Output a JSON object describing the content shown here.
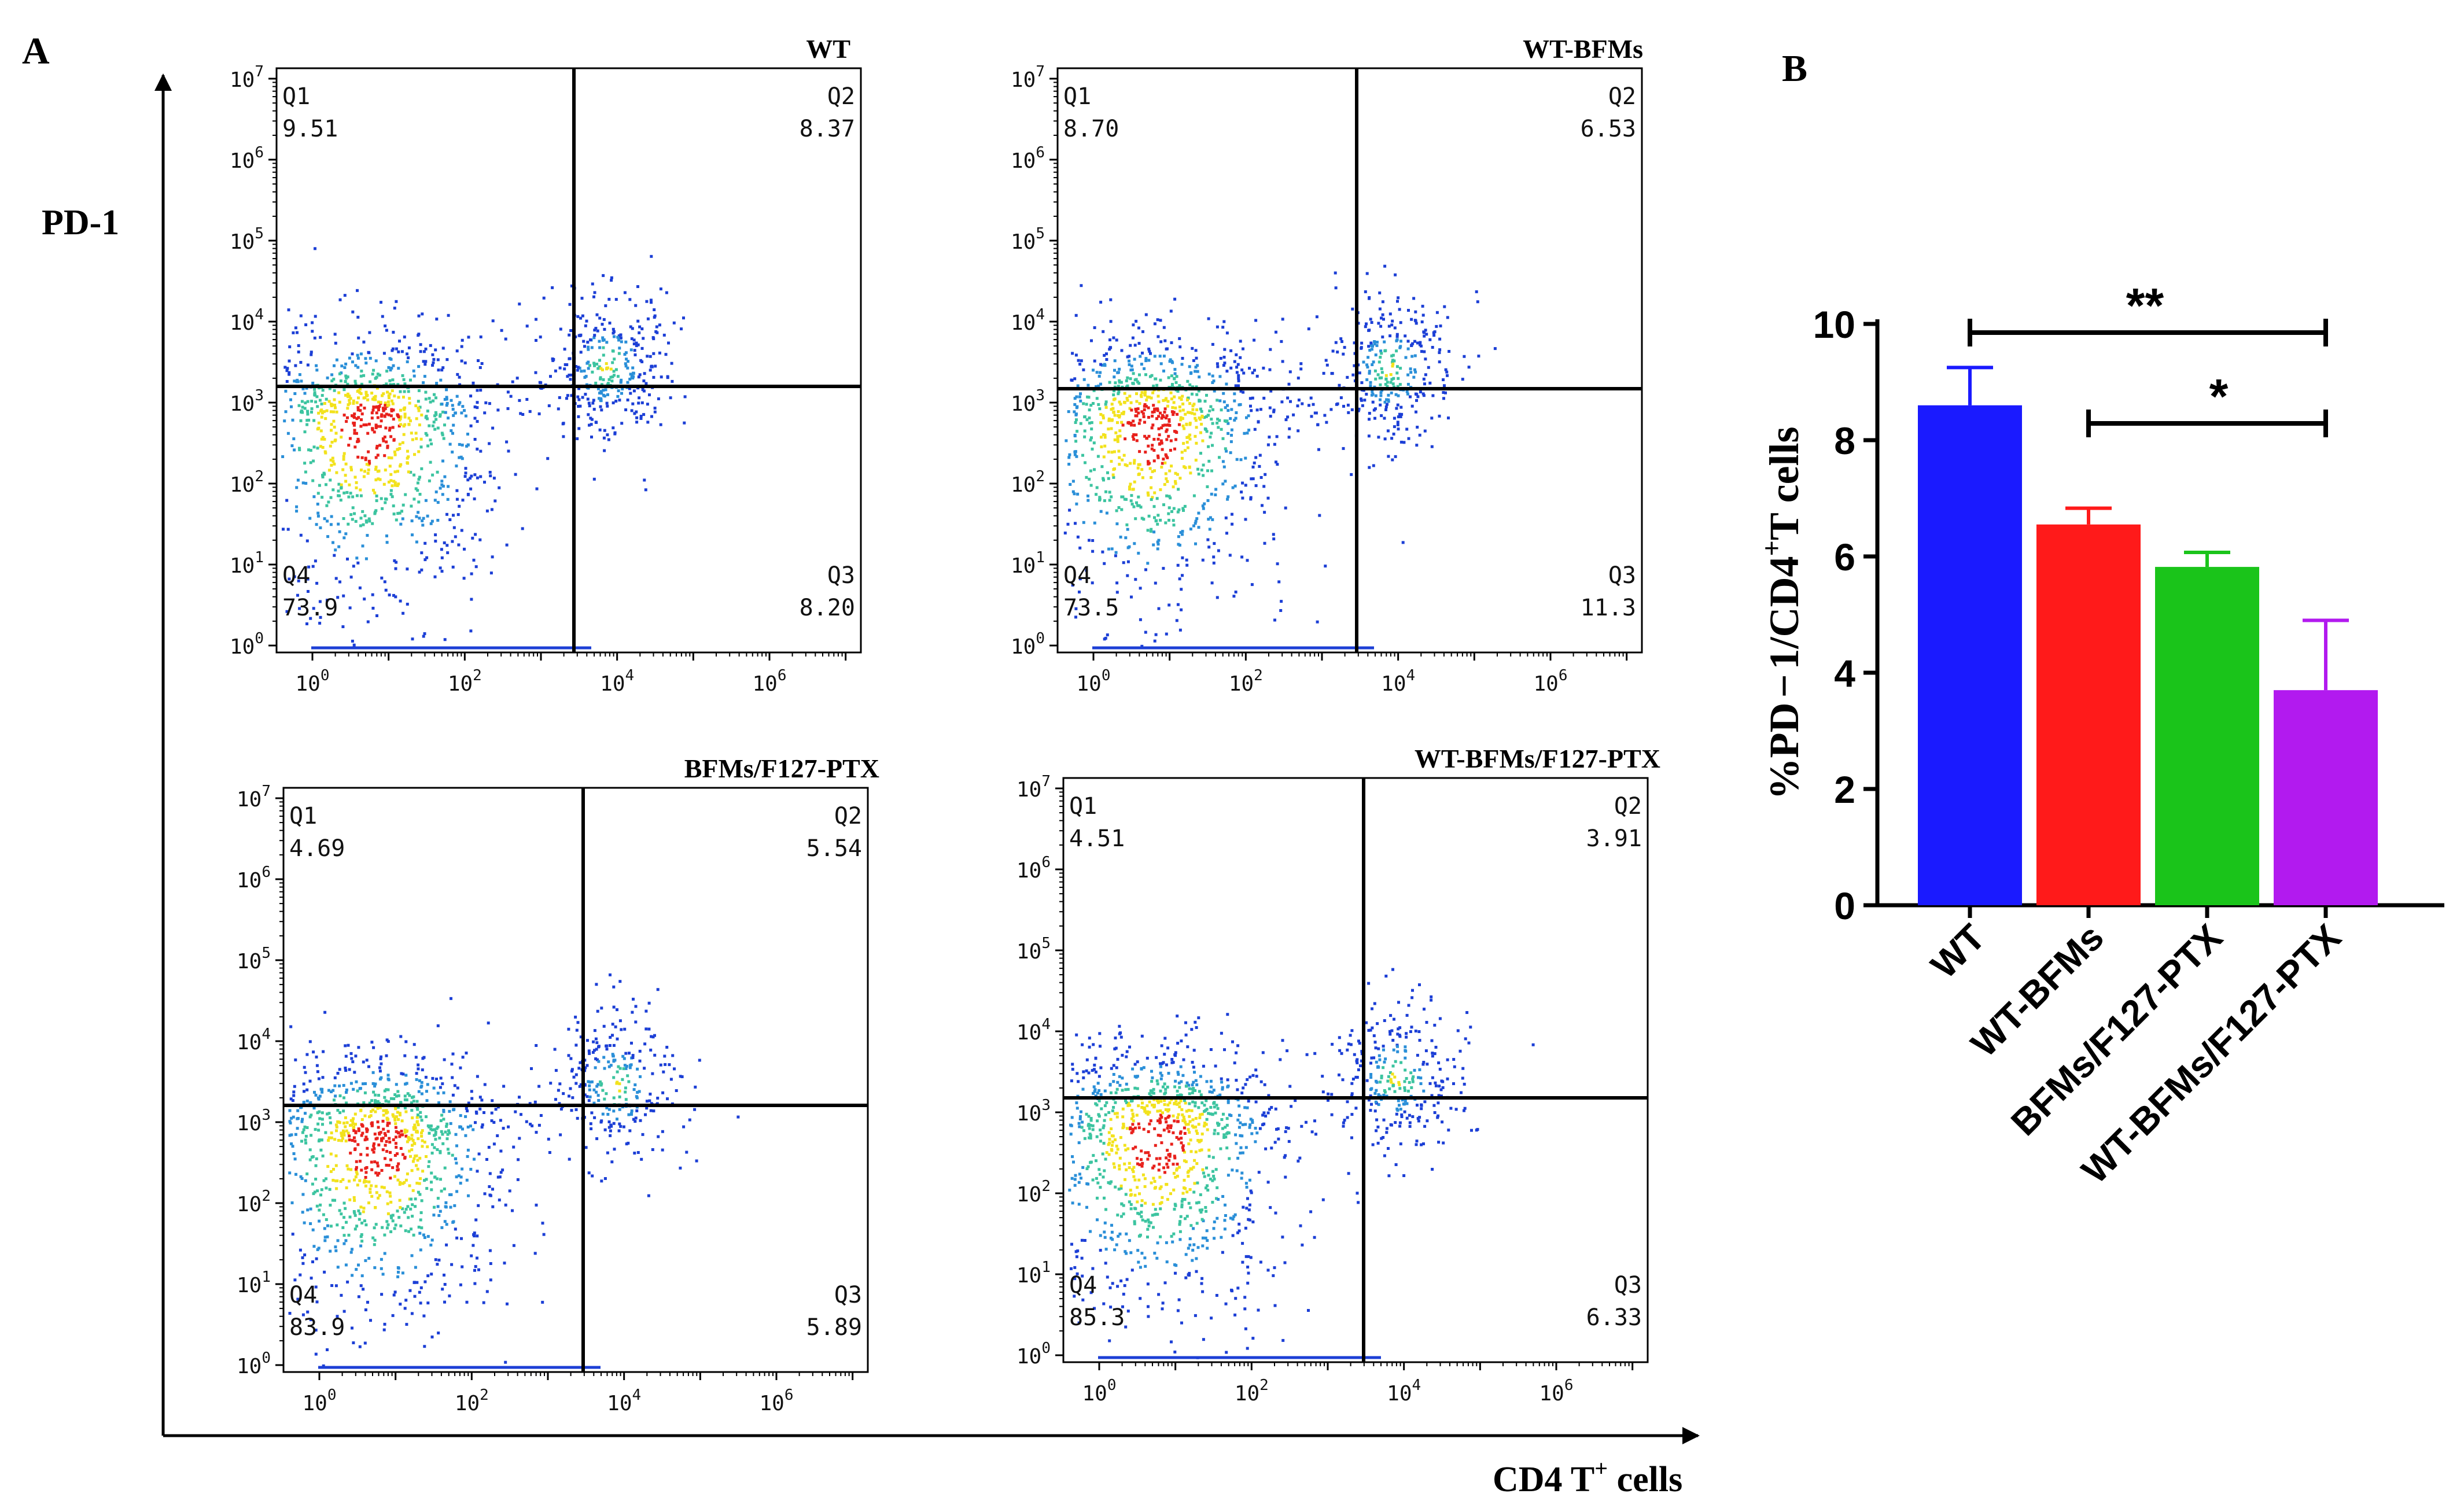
{
  "panel_labels": {
    "a": "A",
    "b": "B"
  },
  "flow_axes": {
    "y_label": "PD-1",
    "x_label": "CD4 T",
    "x_label_sup": "+",
    "x_label_suffix": " cells"
  },
  "colors": {
    "quadrant_line": "#000000",
    "density_high": "#e8211c",
    "density_mid": "#f2e21c",
    "density_low": "#1c3fd6"
  },
  "chart_data": [
    {
      "type": "scatter",
      "title": "WT",
      "x_scale": "log10",
      "y_scale": "log10",
      "x_ticks": [
        "0",
        "2",
        "4",
        "6"
      ],
      "y_ticks": [
        "0",
        "1",
        "2",
        "3",
        "4",
        "5",
        "6",
        "7"
      ],
      "quadrants": [
        {
          "name": "Q1",
          "value": "9.51"
        },
        {
          "name": "Q2",
          "value": "8.37"
        },
        {
          "name": "Q3",
          "value": "8.20"
        },
        {
          "name": "Q4",
          "value": "73.9"
        }
      ]
    },
    {
      "type": "scatter",
      "title": "WT-BFMs",
      "x_scale": "log10",
      "y_scale": "log10",
      "x_ticks": [
        "0",
        "2",
        "4",
        "6"
      ],
      "y_ticks": [
        "0",
        "1",
        "2",
        "3",
        "4",
        "5",
        "6",
        "7"
      ],
      "quadrants": [
        {
          "name": "Q1",
          "value": "8.70"
        },
        {
          "name": "Q2",
          "value": "6.53"
        },
        {
          "name": "Q3",
          "value": "11.3"
        },
        {
          "name": "Q4",
          "value": "73.5"
        }
      ]
    },
    {
      "type": "scatter",
      "title": "BFMs/F127-PTX",
      "x_scale": "log10",
      "y_scale": "log10",
      "x_ticks": [
        "0",
        "2",
        "4",
        "6"
      ],
      "y_ticks": [
        "0",
        "1",
        "2",
        "3",
        "4",
        "5",
        "6",
        "7"
      ],
      "quadrants": [
        {
          "name": "Q1",
          "value": "4.69"
        },
        {
          "name": "Q2",
          "value": "5.54"
        },
        {
          "name": "Q3",
          "value": "5.89"
        },
        {
          "name": "Q4",
          "value": "83.9"
        }
      ]
    },
    {
      "type": "scatter",
      "title": "WT-BFMs/F127-PTX",
      "x_scale": "log10",
      "y_scale": "log10",
      "x_ticks": [
        "0",
        "2",
        "4",
        "6"
      ],
      "y_ticks": [
        "0",
        "1",
        "2",
        "3",
        "4",
        "5",
        "6",
        "7"
      ],
      "quadrants": [
        {
          "name": "Q1",
          "value": "4.51"
        },
        {
          "name": "Q2",
          "value": "3.91"
        },
        {
          "name": "Q3",
          "value": "6.33"
        },
        {
          "name": "Q4",
          "value": "85.3"
        }
      ]
    },
    {
      "type": "bar",
      "categories": [
        "WT",
        "WT-BFMs",
        "BFMs/F127-PTX",
        "WT-BFMs/F127-PTX"
      ],
      "values": [
        8.6,
        6.55,
        5.82,
        3.7
      ],
      "errors": [
        0.65,
        0.28,
        0.25,
        1.2
      ],
      "colors": [
        "#1a1aff",
        "#ff1a1a",
        "#1ac41a",
        "#b21aef"
      ],
      "ylabel_prefix": "%PD",
      "ylabel_dash": "−",
      "ylabel_mid": "1/CD4",
      "ylabel_sup": "+",
      "ylabel_suffix": "T cells",
      "ylim": [
        0,
        10
      ],
      "yticks": [
        "0",
        "2",
        "4",
        "6",
        "8",
        "10"
      ],
      "significance": [
        {
          "from": "WT",
          "to": "WT-BFMs/F127-PTX",
          "label": "**"
        },
        {
          "from": "WT-BFMs",
          "to": "WT-BFMs/F127-PTX",
          "label": "*"
        }
      ]
    }
  ]
}
